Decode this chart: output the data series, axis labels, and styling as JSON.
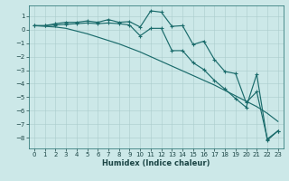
{
  "xlabel": "Humidex (Indice chaleur)",
  "background_color": "#cce8e8",
  "grid_color": "#aacccc",
  "line_color": "#1a6b6b",
  "xlim": [
    -0.5,
    23.5
  ],
  "ylim": [
    -8.8,
    1.8
  ],
  "x": [
    0,
    1,
    2,
    3,
    4,
    5,
    6,
    7,
    8,
    9,
    10,
    11,
    12,
    13,
    14,
    15,
    16,
    17,
    18,
    19,
    20,
    21,
    22,
    23
  ],
  "line1_marked": [
    0.3,
    0.3,
    0.45,
    0.55,
    0.55,
    0.65,
    0.55,
    0.75,
    0.55,
    0.6,
    0.2,
    1.4,
    1.3,
    0.25,
    0.3,
    -1.1,
    -0.85,
    -2.2,
    -3.1,
    -3.25,
    -5.4,
    -4.6,
    -8.1,
    -7.5
  ],
  "line2_marked": [
    0.3,
    0.3,
    0.35,
    0.4,
    0.45,
    0.5,
    0.45,
    0.5,
    0.45,
    0.35,
    -0.45,
    0.1,
    0.1,
    -1.55,
    -1.55,
    -2.45,
    -2.95,
    -3.75,
    -4.4,
    -5.1,
    -5.75,
    -3.3,
    -8.2,
    -7.5
  ],
  "line3_plain": [
    0.3,
    0.25,
    0.2,
    0.1,
    -0.1,
    -0.3,
    -0.55,
    -0.8,
    -1.05,
    -1.35,
    -1.65,
    -2.0,
    -2.35,
    -2.7,
    -3.05,
    -3.4,
    -3.75,
    -4.1,
    -4.5,
    -4.9,
    -5.3,
    -5.7,
    -6.2,
    -6.8
  ],
  "yticks": [
    1,
    0,
    -1,
    -2,
    -3,
    -4,
    -5,
    -6,
    -7,
    -8
  ],
  "xticks": [
    0,
    1,
    2,
    3,
    4,
    5,
    6,
    7,
    8,
    9,
    10,
    11,
    12,
    13,
    14,
    15,
    16,
    17,
    18,
    19,
    20,
    21,
    22,
    23
  ],
  "tick_fontsize": 5.0,
  "xlabel_fontsize": 6.0
}
